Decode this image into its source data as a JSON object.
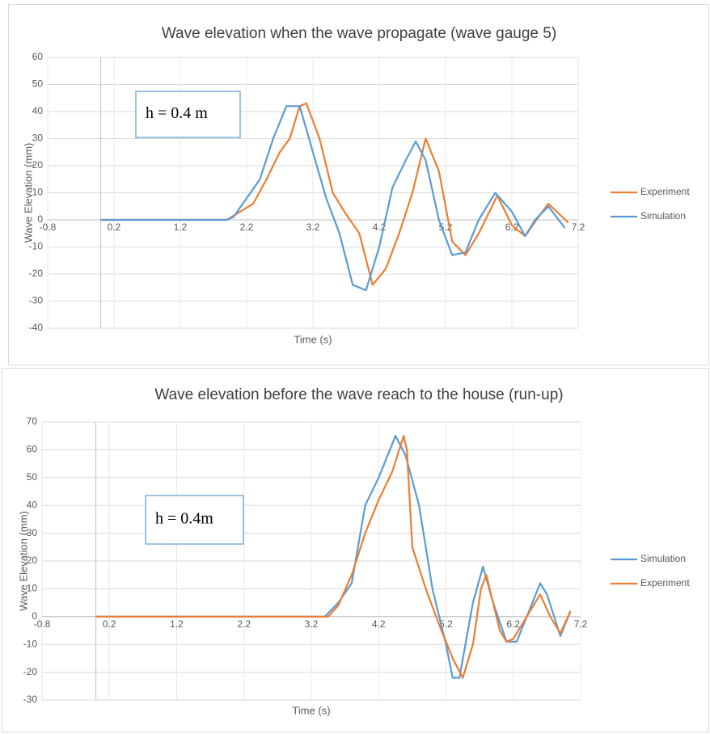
{
  "chart_data": [
    {
      "type": "line",
      "title": "Wave elevation when the wave propagate (wave gauge 5)",
      "annotation": "h = 0.4 m",
      "x_label": "Time (s)",
      "y_label": "Wave Elevation (mm)",
      "xlim": [
        -0.8,
        7.2
      ],
      "xticks": [
        -0.8,
        0.2,
        1.2,
        2.2,
        3.2,
        4.2,
        5.2,
        6.2,
        7.2
      ],
      "ylim": [
        -40,
        60
      ],
      "yticks": [
        -40,
        -30,
        -20,
        -10,
        0,
        10,
        20,
        30,
        40,
        50,
        60
      ],
      "grid": true,
      "legend": "right",
      "series": [
        {
          "name": "Experiment",
          "color": "#ed7d31",
          "x": [
            0,
            1.9,
            2.1,
            2.3,
            2.5,
            2.7,
            2.85,
            3.0,
            3.1,
            3.3,
            3.5,
            3.7,
            3.9,
            4.1,
            4.3,
            4.5,
            4.7,
            4.9,
            5.1,
            5.3,
            5.5,
            5.7,
            5.98,
            6.2,
            6.4,
            6.6,
            6.75,
            7.05
          ],
          "values": [
            0,
            0,
            3,
            6,
            15,
            25,
            30,
            42,
            43,
            30,
            10,
            2,
            -5,
            -24,
            -18,
            -5,
            10,
            30,
            18,
            -8,
            -13,
            -5,
            9,
            -2,
            -6,
            1,
            6,
            -1
          ]
        },
        {
          "name": "Simulation",
          "color": "#5b9bd5",
          "x": [
            0,
            1.9,
            2.0,
            2.2,
            2.4,
            2.6,
            2.8,
            3.0,
            3.2,
            3.4,
            3.6,
            3.8,
            4.0,
            4.2,
            4.4,
            4.6,
            4.75,
            4.9,
            5.1,
            5.3,
            5.5,
            5.7,
            5.95,
            6.2,
            6.4,
            6.55,
            6.75,
            7.0
          ],
          "values": [
            0,
            0,
            1,
            8,
            15,
            30,
            42,
            42,
            25,
            8,
            -5,
            -24,
            -26,
            -10,
            12,
            22,
            29,
            22,
            0,
            -13,
            -12,
            0,
            10,
            3,
            -6,
            0,
            5,
            -3
          ]
        }
      ]
    },
    {
      "type": "line",
      "title": "Wave elevation before the wave reach to the house (run-up)",
      "annotation": "h = 0.4m",
      "x_label": "Time (s)",
      "y_label": "Wave Elevation (mm)",
      "xlim": [
        -0.8,
        7.2
      ],
      "xticks": [
        -0.8,
        0.2,
        1.2,
        2.2,
        3.2,
        4.2,
        5.2,
        6.2,
        7.2
      ],
      "ylim": [
        -30,
        70
      ],
      "yticks": [
        -30,
        -20,
        -10,
        0,
        10,
        20,
        30,
        40,
        50,
        60,
        70
      ],
      "grid": true,
      "legend": "right",
      "series": [
        {
          "name": "Simulation",
          "color": "#5b9bd5",
          "x": [
            0,
            3.4,
            3.6,
            3.8,
            4.0,
            4.2,
            4.45,
            4.6,
            4.8,
            5.0,
            5.2,
            5.3,
            5.4,
            5.6,
            5.75,
            5.9,
            6.1,
            6.25,
            6.45,
            6.6,
            6.7,
            6.9,
            7.05
          ],
          "values": [
            0,
            0,
            5,
            12,
            40,
            50,
            65,
            58,
            40,
            10,
            -10,
            -22,
            -22,
            5,
            18,
            5,
            -9,
            -9,
            3,
            12,
            8,
            -7,
            2
          ]
        },
        {
          "name": "Experiment",
          "color": "#ed7d31",
          "x": [
            0,
            3.45,
            3.6,
            3.8,
            4.0,
            4.2,
            4.4,
            4.57,
            4.62,
            4.7,
            4.9,
            5.1,
            5.3,
            5.45,
            5.6,
            5.72,
            5.8,
            6.0,
            6.1,
            6.2,
            6.4,
            6.6,
            6.75,
            6.9,
            7.05
          ],
          "values": [
            0,
            0,
            4,
            15,
            30,
            42,
            52,
            65,
            60,
            25,
            10,
            -3,
            -15,
            -22,
            -10,
            10,
            15,
            -5,
            -9,
            -8,
            0,
            8,
            0,
            -6,
            2
          ]
        }
      ]
    }
  ]
}
